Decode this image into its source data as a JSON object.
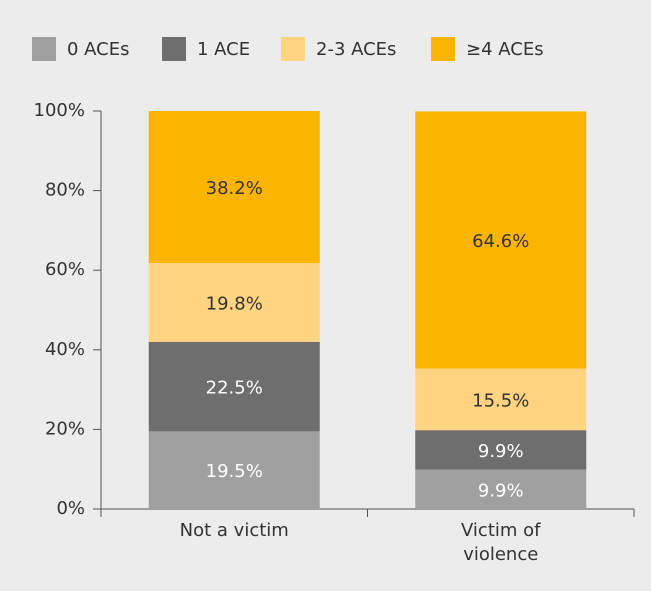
{
  "chart_data": {
    "type": "stacked_bar",
    "categories": [
      "Not a victim",
      "Victim of violence"
    ],
    "series": [
      {
        "name": "0 ACEs",
        "color": "#a0a0a0",
        "label_color": "#ffffff",
        "values": [
          19.5,
          9.9
        ],
        "value_labels": [
          "19.5%",
          "9.9%"
        ]
      },
      {
        "name": "1 ACE",
        "color": "#6e6e6e",
        "label_color": "#ffffff",
        "values": [
          22.5,
          9.9
        ],
        "value_labels": [
          "22.5%",
          "9.9%"
        ]
      },
      {
        "name": "2-3 ACEs",
        "color": "#ffd480",
        "label_color": "#333333",
        "values": [
          19.8,
          15.5
        ],
        "value_labels": [
          "19.8%",
          "15.5%"
        ]
      },
      {
        "name": "≥4 ACEs",
        "color": "#fbb400",
        "label_color": "#333333",
        "values": [
          38.2,
          64.6
        ],
        "value_labels": [
          "38.2%",
          "64.6%"
        ]
      }
    ],
    "ylim": [
      0,
      100
    ],
    "yticks": [
      {
        "value": 0,
        "label": "0%"
      },
      {
        "value": 20,
        "label": "20%"
      },
      {
        "value": 40,
        "label": "40%"
      },
      {
        "value": 60,
        "label": "60%"
      },
      {
        "value": 80,
        "label": "80%"
      },
      {
        "value": 100,
        "label": "100%"
      }
    ],
    "legend": "top"
  }
}
